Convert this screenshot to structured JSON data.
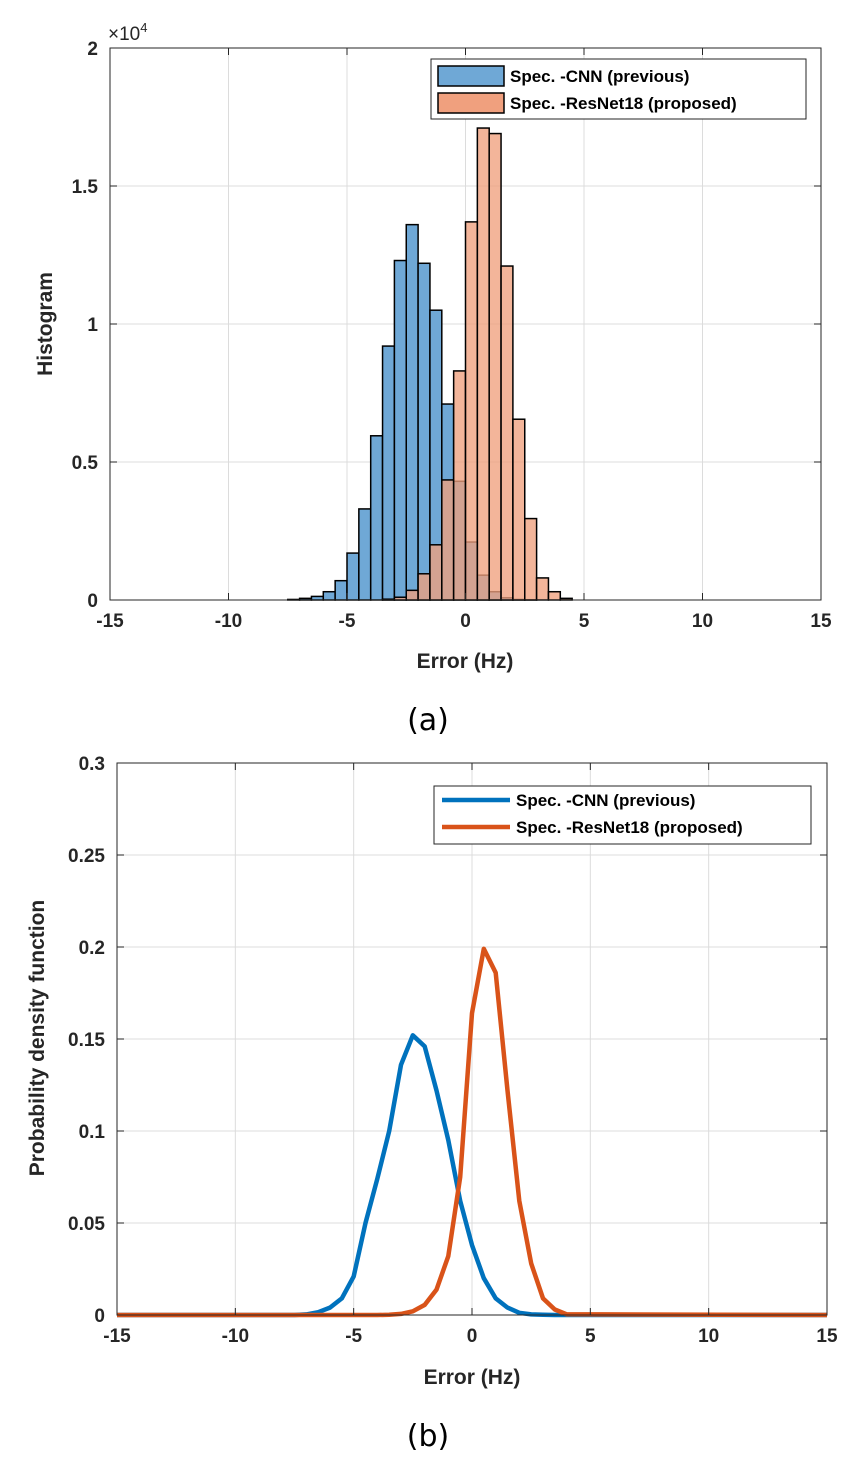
{
  "chart_data": [
    {
      "type": "bar",
      "panel_label": "(a)",
      "xlabel": "Error (Hz)",
      "ylabel": "Histogram",
      "xlim": [
        -15,
        15
      ],
      "ylim": [
        0,
        20000
      ],
      "y_exponent_label": "×10",
      "y_exponent_sup": "4",
      "xticks": [
        -15,
        -10,
        -5,
        0,
        5,
        10,
        15
      ],
      "xtick_labels": [
        "-15",
        "-10",
        "-5",
        "0",
        "5",
        "10",
        "15"
      ],
      "yticks": [
        0,
        5000,
        10000,
        15000,
        20000
      ],
      "ytick_labels": [
        "0",
        "0.5",
        "1",
        "1.5",
        "2"
      ],
      "grid": true,
      "legend_position": "top-right",
      "bin_width": 0.5,
      "series": [
        {
          "name": "Spec. -CNN (previous)",
          "color": "#6fa8d6",
          "bin_start": -7.5,
          "values": [
            20,
            60,
            130,
            300,
            700,
            1700,
            3300,
            5950,
            9200,
            12300,
            13600,
            12200,
            10500,
            7100,
            4300,
            2100,
            900,
            300,
            80,
            20,
            10
          ]
        },
        {
          "name": "Spec. -ResNet18 (proposed)",
          "color": "#f0a07e",
          "bin_start": -3.5,
          "values": [
            30,
            100,
            350,
            950,
            2000,
            4350,
            8300,
            13700,
            17100,
            16900,
            12100,
            6550,
            2950,
            800,
            300,
            60
          ]
        }
      ]
    },
    {
      "type": "line",
      "panel_label": "(b)",
      "xlabel": "Error (Hz)",
      "ylabel": "Probability density function",
      "xlim": [
        -15,
        15
      ],
      "ylim": [
        0,
        0.3
      ],
      "xticks": [
        -15,
        -10,
        -5,
        0,
        5,
        10,
        15
      ],
      "xtick_labels": [
        "-15",
        "-10",
        "-5",
        "0",
        "5",
        "10",
        "15"
      ],
      "yticks": [
        0,
        0.05,
        0.1,
        0.15,
        0.2,
        0.25,
        0.3
      ],
      "ytick_labels": [
        "0",
        "0.05",
        "0.1",
        "0.15",
        "0.2",
        "0.25",
        "0.3"
      ],
      "grid": true,
      "legend_position": "top-right",
      "series": [
        {
          "name": "Spec. -CNN (previous)",
          "color": "#0072bd",
          "x": [
            -15,
            -7.5,
            -7,
            -6.5,
            -6,
            -5.5,
            -5,
            -4.5,
            -4,
            -3.5,
            -3,
            -2.5,
            -2,
            -1.5,
            -1,
            -0.5,
            0,
            0.5,
            1,
            1.5,
            2,
            2.5,
            3,
            3.5,
            4,
            4.5,
            15
          ],
          "y": [
            0,
            0,
            0.0003,
            0.0015,
            0.004,
            0.009,
            0.021,
            0.05,
            0.074,
            0.1,
            0.136,
            0.152,
            0.146,
            0.122,
            0.095,
            0.062,
            0.038,
            0.02,
            0.009,
            0.004,
            0.0012,
            0.0003,
            0.0001,
            0,
            0,
            0,
            0
          ]
        },
        {
          "name": "Spec. -ResNet18 (proposed)",
          "color": "#d95319",
          "x": [
            -15,
            -4,
            -3.5,
            -3,
            -2.5,
            -2,
            -1.5,
            -1,
            -0.5,
            0,
            0.5,
            1,
            1.5,
            2,
            2.5,
            3,
            3.5,
            4,
            15
          ],
          "y": [
            0,
            0,
            0.0001,
            0.0006,
            0.002,
            0.0055,
            0.0138,
            0.032,
            0.075,
            0.164,
            0.199,
            0.186,
            0.122,
            0.062,
            0.028,
            0.009,
            0.003,
            0.0004,
            0
          ]
        }
      ]
    }
  ]
}
